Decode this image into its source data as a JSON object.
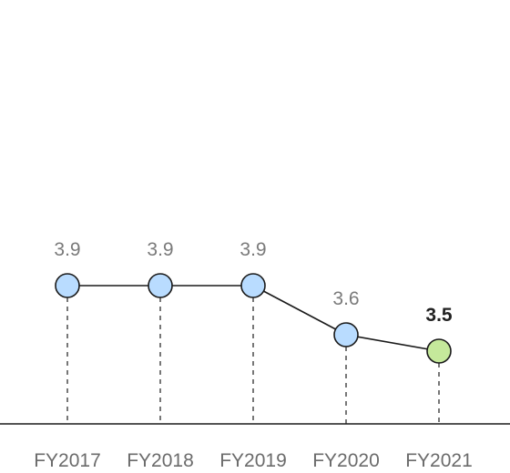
{
  "chart_data": {
    "type": "line",
    "categories": [
      "FY2017",
      "FY2018",
      "FY2019",
      "FY2020",
      "FY2021"
    ],
    "values": [
      3.9,
      3.9,
      3.9,
      3.6,
      3.5
    ],
    "data_labels": [
      "3.9",
      "3.9",
      "3.9",
      "3.6",
      "3.5"
    ],
    "highlight_index": 4,
    "title": "",
    "xlabel": "",
    "ylabel": "",
    "grid": false,
    "colors": {
      "point": "#b9dcff",
      "highlight_point": "#c5e99b",
      "line": "#1a1a1a",
      "drop_line": "#777777",
      "axis": "#1a1a1a"
    }
  }
}
